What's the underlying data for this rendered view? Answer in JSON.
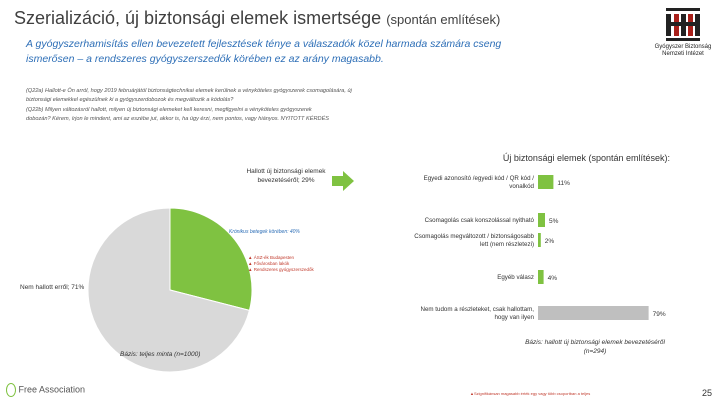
{
  "header": {
    "title": "Szerializáció, új biztonsági elemek ismertsége",
    "title_suffix": "(spontán említések)",
    "subtitle": "A gyógyszerhamisítás ellen bevezetett fejlesztések ténye a válaszadók közel harmada számára cseng ismerősen – a rendszeres gyógyszerszedők körében ez az arány magasabb.",
    "questions": [
      "(Q22a) Hallott-e Ön arról, hogy 2019 februárjától biztonságtechnikai elemek kerülnek a vényköteles gyógyszerek csomagolására, új",
      "biztonsági elemekkel egészülnek ki a gyógyszerdobozok és megváltozik a kódolás?",
      "(Q22b) Milyen változásról hallott, milyen új biztonsági elemeket kell keresni, megfigyelni a vényköteles gyógyszerek",
      "dobozán? Kérem, írjon le mindent, ami az eszébe jut, akkor is, ha úgy érzi, nem pontos, vagy hiányos. NYITOTT KÉRDÉS"
    ]
  },
  "logo": {
    "line1": "Gyógyszer Biztonság",
    "line2": "Nemzeti Intézet"
  },
  "pie": {
    "slices": [
      {
        "label": "Hallott új biztonsági elemek bevezetéséről; 29%",
        "value": 29,
        "color": "#7fc241"
      },
      {
        "label": "Nem hallott erről; 71%",
        "value": 71,
        "color": "#d9d9d9"
      }
    ],
    "inner_note": "Krónikus betegek körében: 40%",
    "base_label": "Bázis: teljes minta (n=1000)",
    "legend_items": [
      "ÁSZ-ék Budapesten",
      "Fővárosban lakók",
      "Rendszeres gyógyszerszedők"
    ]
  },
  "chart_data": {
    "type": "bar",
    "orientation": "horizontal",
    "title": "Új biztonsági elemek (spontán említések):",
    "categories": [
      "Egyedi azonosító /egyedi kód / QR kód / vonalkód",
      "Csomagolás csak konszolással nyitható",
      "Csomagolás megváltozott / biztonságosabb lett (nem részletezi)",
      "Egyéb válasz",
      "Nem tudom a részleteket, csak hallottam, hogy van ilyen"
    ],
    "values": [
      11,
      5,
      2,
      4,
      79
    ],
    "value_labels": [
      "11%",
      "5%",
      "2%",
      "4%",
      "79%"
    ],
    "colors": [
      "#7fc241",
      "#7fc241",
      "#7fc241",
      "#7fc241",
      "#bfbfbf"
    ],
    "xlim": [
      0,
      100
    ],
    "base_label": "Bázis: hallott új biztonsági elemek bevezetéséről (n=294)"
  },
  "footer": {
    "note": "Szignifikánsan magasabb érték egy vagy több csoportban a teljes",
    "page_number": "25",
    "logo_text": "Free Association"
  },
  "colors": {
    "accent_blue": "#2e6fb7",
    "green": "#7fc241",
    "grey_slice": "#d9d9d9",
    "grey_bar": "#bfbfbf",
    "arrow": "#7fc241",
    "significance_red": "#c0392b"
  }
}
